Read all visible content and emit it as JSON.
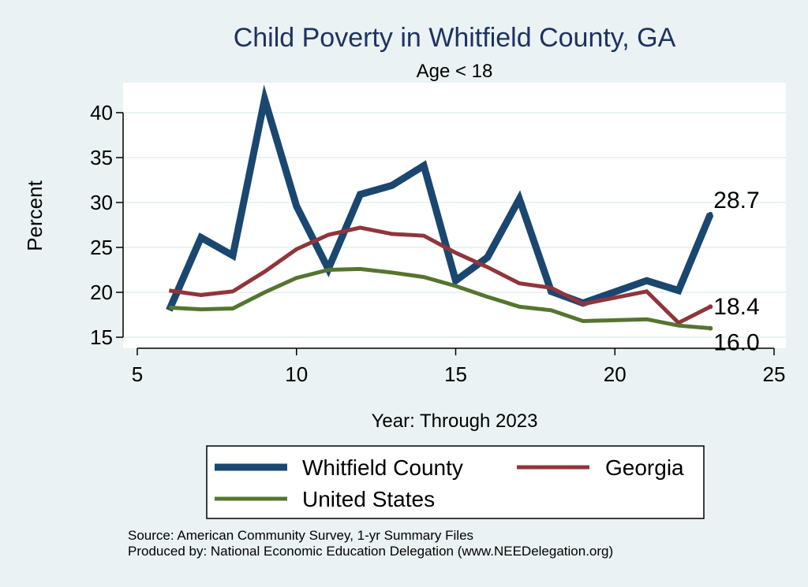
{
  "chart_data": {
    "type": "line",
    "title": "Child Poverty in Whitfield County, GA",
    "subtitle": "Age < 18",
    "xlabel": "Year: Through 2023",
    "ylabel": "Percent",
    "xlim": [
      5,
      25
    ],
    "ylim": [
      14,
      43
    ],
    "xticks": [
      5,
      10,
      15,
      20,
      25
    ],
    "yticks": [
      15,
      20,
      25,
      30,
      35,
      40
    ],
    "grid": true,
    "legend_position": "bottom",
    "series": [
      {
        "name": "Whitfield County",
        "color": "#1a476f",
        "x": [
          6,
          7,
          8,
          9,
          10,
          11,
          12,
          13,
          14,
          15,
          16,
          17,
          18,
          19,
          21,
          22,
          23
        ],
        "values": [
          18.0,
          26.1,
          24.1,
          41.5,
          29.6,
          22.6,
          30.9,
          31.9,
          34.1,
          21.3,
          23.9,
          30.4,
          20.1,
          18.8,
          21.3,
          20.2,
          28.7
        ],
        "end_label": "28.7"
      },
      {
        "name": "Georgia",
        "color": "#90353b",
        "x": [
          6,
          7,
          8,
          9,
          10,
          11,
          12,
          13,
          14,
          15,
          16,
          17,
          18,
          19,
          21,
          22,
          23
        ],
        "values": [
          20.2,
          19.7,
          20.1,
          22.3,
          24.8,
          26.4,
          27.2,
          26.5,
          26.3,
          24.4,
          22.8,
          21.0,
          20.5,
          18.7,
          20.1,
          16.6,
          18.4
        ],
        "end_label": "18.4"
      },
      {
        "name": "United States",
        "color": "#55752f",
        "x": [
          6,
          7,
          8,
          9,
          10,
          11,
          12,
          13,
          14,
          15,
          16,
          17,
          18,
          19,
          21,
          22,
          23
        ],
        "values": [
          18.3,
          18.1,
          18.2,
          20.0,
          21.6,
          22.5,
          22.6,
          22.2,
          21.7,
          20.7,
          19.5,
          18.4,
          18.0,
          16.8,
          17.0,
          16.3,
          16.0
        ],
        "end_label": "16.0"
      }
    ]
  },
  "source_line": "Source: American Community Survey, 1-yr Summary Files",
  "produced_line": "Produced by: National Economic Education Delegation (www.NEEDelegation.org)"
}
